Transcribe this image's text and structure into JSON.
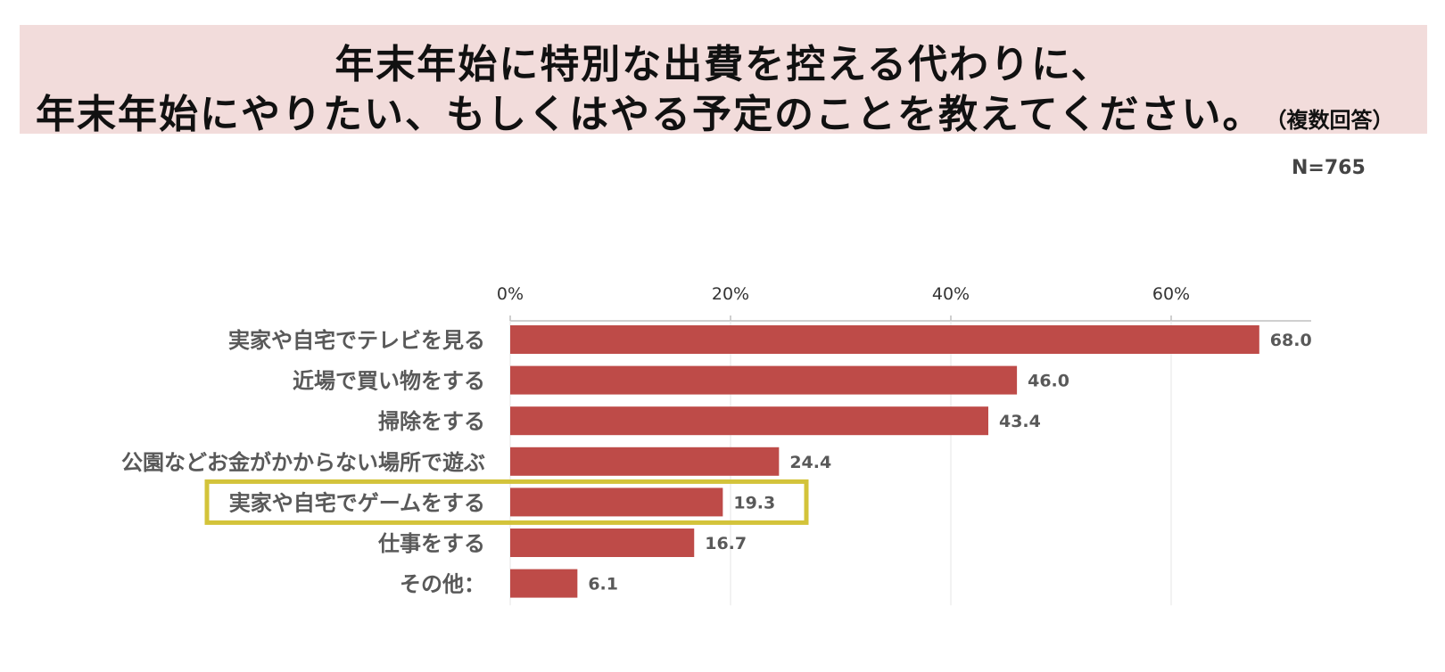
{
  "title": {
    "line1": "年末年始に特別な出費を控える代わりに、",
    "line2": "年末年始にやりたい、もしくはやる予定のことを教えてください。",
    "note": "（複数回答）"
  },
  "sample_size": "N=765",
  "chart_data": {
    "type": "bar",
    "orientation": "horizontal",
    "categories": [
      "実家や自宅でテレビを見る",
      "近場で買い物をする",
      "掃除をする",
      "公園などお金がかからない場所で遊ぶ",
      "実家や自宅でゲームをする",
      "仕事をする",
      "その他："
    ],
    "values": [
      68.0,
      46.0,
      43.4,
      24.4,
      19.3,
      16.7,
      6.1
    ],
    "value_labels": [
      "68.0",
      "46.0",
      "43.4",
      "24.4",
      "19.3",
      "16.7",
      "6.1"
    ],
    "x_ticks": [
      "0%",
      "20%",
      "40%",
      "60%"
    ],
    "xlim": [
      0,
      70
    ],
    "axis_position": "top",
    "grid": true,
    "highlighted_category": "実家や自宅でゲームをする",
    "colors": {
      "bar": "#be4b48",
      "highlight": "#d3c33a"
    }
  }
}
